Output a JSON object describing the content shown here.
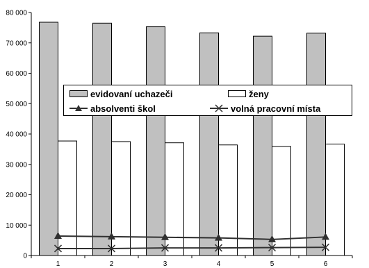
{
  "chart_data": {
    "type": "bar",
    "categories": [
      "1",
      "2",
      "3",
      "4",
      "5",
      "6"
    ],
    "series": [
      {
        "name": "evidovaní uchazeči",
        "kind": "bar",
        "color": "#c0c0c0",
        "values": [
          76800,
          76500,
          75300,
          73300,
          72200,
          73200
        ]
      },
      {
        "name": "ženy",
        "kind": "bar",
        "color": "#ffffff",
        "values": [
          37700,
          37500,
          37100,
          36400,
          35900,
          36700
        ]
      },
      {
        "name": "absolventi škol",
        "kind": "line",
        "marker": "triangle",
        "color": "#303030",
        "values": [
          6400,
          6200,
          6000,
          5800,
          5300,
          6100
        ]
      },
      {
        "name": "volná pracovní místa",
        "kind": "line",
        "marker": "x",
        "color": "#303030",
        "values": [
          2300,
          2300,
          2500,
          2500,
          2600,
          2700
        ]
      }
    ],
    "ylim": [
      0,
      80000
    ],
    "yticks": [
      0,
      10000,
      20000,
      30000,
      40000,
      50000,
      60000,
      70000,
      80000
    ],
    "ytick_labels": [
      "0",
      "10 000",
      "20 000",
      "30 000",
      "40 000",
      "50 000",
      "60 000",
      "70 000",
      "80 000"
    ],
    "grid": false,
    "legend_position": "center",
    "title": "",
    "xlabel": "",
    "ylabel": ""
  }
}
